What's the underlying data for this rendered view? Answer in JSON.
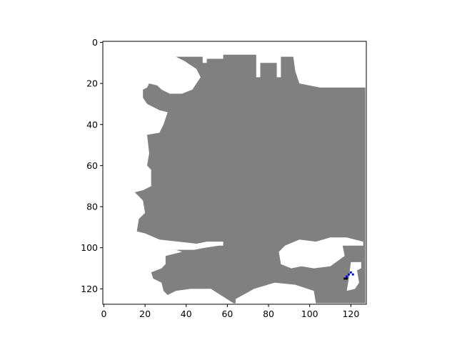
{
  "chart_data": {
    "type": "heatmap",
    "title": "",
    "xlabel": "",
    "ylabel": "",
    "xlim": [
      -0.5,
      127.5
    ],
    "ylim": [
      127.5,
      -0.5
    ],
    "x_ticks": [
      0,
      20,
      40,
      60,
      80,
      100,
      120
    ],
    "y_ticks": [
      0,
      20,
      40,
      60,
      80,
      100,
      120
    ],
    "x_tick_labels": [
      "0",
      "20",
      "40",
      "60",
      "80",
      "100",
      "120"
    ],
    "y_tick_labels": [
      "0",
      "20",
      "40",
      "60",
      "80",
      "100",
      "120"
    ],
    "grid": false,
    "legend": "none",
    "colors": {
      "occupied": "#808080",
      "free": "#ffffff",
      "path": "#0000ff",
      "marker": "#000000"
    },
    "occupied_region": [
      [
        35,
        7
      ],
      [
        48,
        7
      ],
      [
        48,
        10
      ],
      [
        50,
        10
      ],
      [
        50,
        8
      ],
      [
        58,
        8
      ],
      [
        58,
        6
      ],
      [
        74,
        6
      ],
      [
        74,
        17
      ],
      [
        76,
        17
      ],
      [
        76,
        10
      ],
      [
        84,
        10
      ],
      [
        84,
        17
      ],
      [
        86,
        17
      ],
      [
        86,
        7
      ],
      [
        92,
        7
      ],
      [
        93,
        14
      ],
      [
        95,
        20
      ],
      [
        100,
        21
      ],
      [
        105,
        22
      ],
      [
        127,
        22
      ],
      [
        127,
        127
      ],
      [
        103,
        127
      ],
      [
        102,
        121
      ],
      [
        93,
        118
      ],
      [
        83,
        117
      ],
      [
        73,
        120
      ],
      [
        64,
        125
      ],
      [
        64,
        127
      ],
      [
        63,
        127
      ],
      [
        52,
        120
      ],
      [
        42,
        120
      ],
      [
        35,
        121
      ],
      [
        31,
        123
      ],
      [
        29,
        121
      ],
      [
        28,
        117
      ],
      [
        24,
        115
      ],
      [
        23,
        112
      ],
      [
        28,
        110
      ],
      [
        30,
        108
      ],
      [
        30,
        104
      ],
      [
        31,
        101
      ],
      [
        44,
        101
      ],
      [
        49,
        100
      ],
      [
        56,
        99
      ],
      [
        58,
        99
      ],
      [
        58,
        97
      ],
      [
        50,
        97
      ],
      [
        45,
        98
      ],
      [
        36,
        97
      ],
      [
        27,
        96
      ],
      [
        20,
        93
      ],
      [
        16,
        92
      ],
      [
        17,
        86
      ],
      [
        20,
        83
      ],
      [
        19,
        77
      ],
      [
        15,
        73
      ],
      [
        19,
        72
      ],
      [
        23,
        70
      ],
      [
        23,
        62
      ],
      [
        21,
        60
      ],
      [
        22,
        54
      ],
      [
        21,
        45
      ],
      [
        27,
        44
      ],
      [
        29,
        40
      ],
      [
        31,
        34
      ],
      [
        27,
        33
      ],
      [
        21,
        30
      ],
      [
        19,
        27
      ],
      [
        19,
        23
      ],
      [
        21,
        22
      ],
      [
        22,
        20
      ],
      [
        26,
        21
      ],
      [
        28,
        23
      ],
      [
        32,
        25
      ],
      [
        38,
        25
      ],
      [
        43,
        23
      ],
      [
        47,
        17
      ],
      [
        45,
        13
      ],
      [
        39,
        9
      ]
    ],
    "free_regions_inside": [
      [
        [
          88,
          99
        ],
        [
          95,
          96
        ],
        [
          103,
          97
        ],
        [
          110,
          95
        ],
        [
          118,
          95
        ],
        [
          122,
          96
        ],
        [
          126,
          97
        ],
        [
          126,
          99
        ],
        [
          122,
          99
        ],
        [
          116,
          99
        ],
        [
          117,
          104
        ],
        [
          110,
          109
        ],
        [
          102,
          110
        ],
        [
          96,
          109
        ],
        [
          91,
          110
        ],
        [
          86,
          108
        ],
        [
          85,
          102
        ]
      ],
      [
        [
          30,
          101
        ],
        [
          35,
          101
        ],
        [
          38,
          102
        ],
        [
          30,
          104
        ]
      ]
    ],
    "free_notch_lower_right": [
      [
        120,
        107
      ],
      [
        125,
        107
      ],
      [
        125,
        110
      ],
      [
        123,
        111
      ],
      [
        124,
        117
      ],
      [
        122,
        120
      ],
      [
        118,
        121
      ],
      [
        119,
        115
      ]
    ],
    "path_points": [
      [
        118,
        114
      ],
      [
        119,
        113
      ],
      [
        120,
        112
      ],
      [
        121,
        113
      ]
    ],
    "marker_points": [
      [
        117,
        115
      ],
      [
        118,
        115
      ]
    ]
  }
}
